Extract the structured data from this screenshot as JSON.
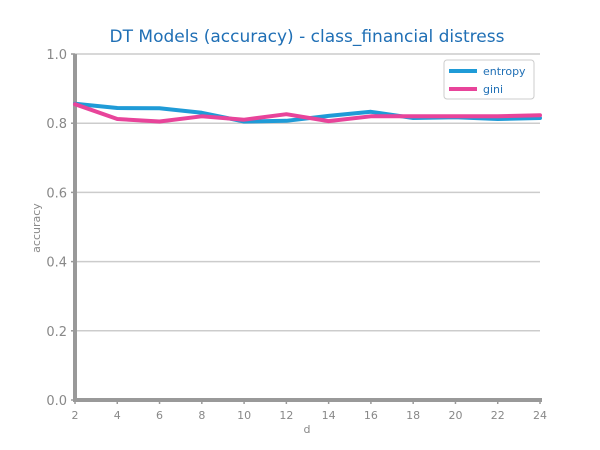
{
  "chart_data": {
    "type": "line",
    "title": "DT Models (accuracy) - class_financial distress",
    "xlabel": "d",
    "ylabel": "accuracy",
    "x": [
      2,
      4,
      6,
      8,
      10,
      12,
      14,
      16,
      18,
      20,
      22,
      24
    ],
    "xlim": [
      2,
      24
    ],
    "ylim": [
      0.0,
      1.0
    ],
    "xticks": [
      "2",
      "4",
      "6",
      "8",
      "10",
      "12",
      "14",
      "16",
      "18",
      "20",
      "22",
      "24"
    ],
    "yticks": [
      "0.0",
      "0.2",
      "0.4",
      "0.6",
      "0.8",
      "1.0"
    ],
    "grid": "horizontal",
    "legend_position": "top-right",
    "series": [
      {
        "name": "entropy",
        "color": "#1f9bd7",
        "values": [
          0.856,
          0.844,
          0.843,
          0.83,
          0.805,
          0.807,
          0.821,
          0.833,
          0.815,
          0.817,
          0.812,
          0.815
        ]
      },
      {
        "name": "gini",
        "color": "#e8449a",
        "values": [
          0.855,
          0.812,
          0.805,
          0.82,
          0.81,
          0.826,
          0.806,
          0.82,
          0.82,
          0.82,
          0.82,
          0.823
        ]
      }
    ]
  }
}
